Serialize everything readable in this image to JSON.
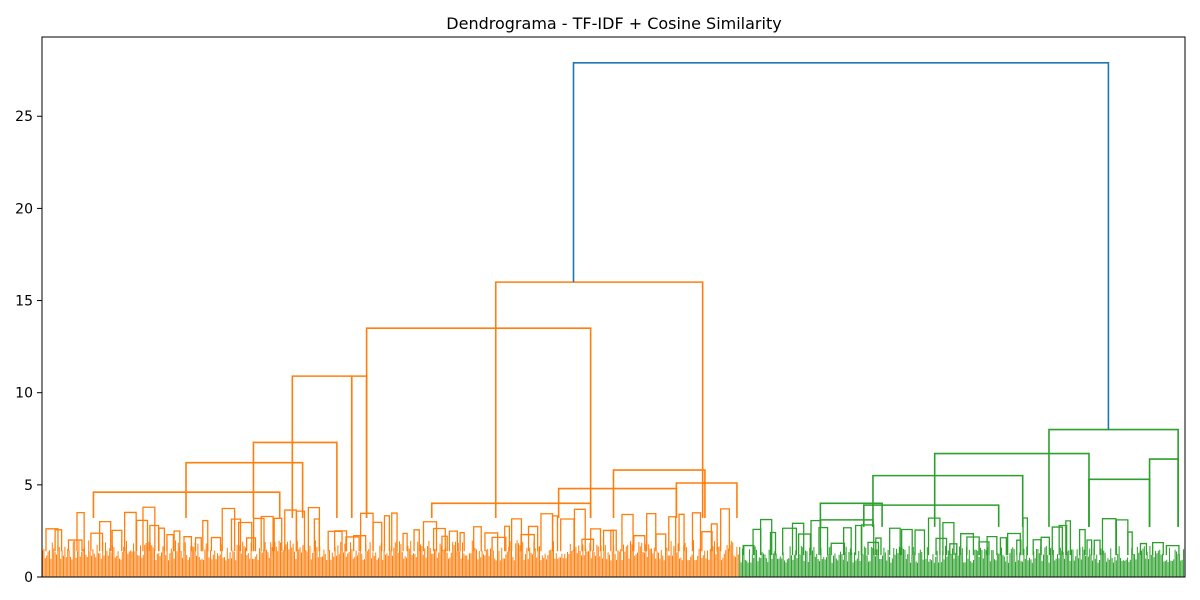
{
  "chart_data": {
    "type": "dendrogram",
    "title": "Dendrograma - TF-IDF + Cosine Similarity",
    "xlabel": "",
    "ylabel": "",
    "ylim": [
      0,
      29.3
    ],
    "yticks": [
      0,
      5,
      10,
      15,
      20,
      25
    ],
    "grid": false,
    "colors": {
      "cluster_orange": "#ff7f0e",
      "cluster_green": "#2ca02c",
      "root_link": "#1f77b4"
    },
    "clusters": [
      {
        "color": "cluster_orange",
        "leaf_range": [
          0,
          0.61
        ],
        "base_height": 2.0,
        "links": [
          {
            "x_left": 0.045,
            "x_right": 0.208,
            "height": 4.6
          },
          {
            "x_left": 0.126,
            "x_right": 0.228,
            "height": 6.2
          },
          {
            "x_left": 0.185,
            "x_right": 0.258,
            "height": 7.3
          },
          {
            "x_left": 0.219,
            "x_right": 0.271,
            "height": 10.9
          },
          {
            "x_left": 0.271,
            "x_right": 0.284,
            "height": 10.9
          },
          {
            "x_left": 0.341,
            "x_right": 0.48,
            "height": 4.0
          },
          {
            "x_left": 0.452,
            "x_right": 0.555,
            "height": 4.8
          },
          {
            "x_left": 0.5,
            "x_right": 0.58,
            "height": 5.8
          },
          {
            "x_left": 0.555,
            "x_right": 0.608,
            "height": 5.1
          },
          {
            "x_left": 0.284,
            "x_right": 0.48,
            "height": 13.5
          },
          {
            "x_left": 0.397,
            "x_right": 0.578,
            "height": 16.0
          }
        ]
      },
      {
        "color": "cluster_green",
        "leaf_range": [
          0.61,
          1.0
        ],
        "base_height": 1.7,
        "links": [
          {
            "x_left": 0.681,
            "x_right": 0.727,
            "height": 3.1
          },
          {
            "x_left": 0.681,
            "x_right": 0.735,
            "height": 4.0
          },
          {
            "x_left": 0.719,
            "x_right": 0.837,
            "height": 3.9
          },
          {
            "x_left": 0.727,
            "x_right": 0.858,
            "height": 5.5
          },
          {
            "x_left": 0.781,
            "x_right": 0.916,
            "height": 6.7
          },
          {
            "x_left": 0.916,
            "x_right": 0.969,
            "height": 5.3
          },
          {
            "x_left": 0.969,
            "x_right": 0.994,
            "height": 6.4
          },
          {
            "x_left": 0.881,
            "x_right": 0.994,
            "height": 8.0
          }
        ]
      }
    ],
    "root": {
      "x_left": 0.465,
      "x_right": 0.933,
      "height": 27.9,
      "left_child_height": 16.0,
      "right_child_height": 8.0
    }
  }
}
